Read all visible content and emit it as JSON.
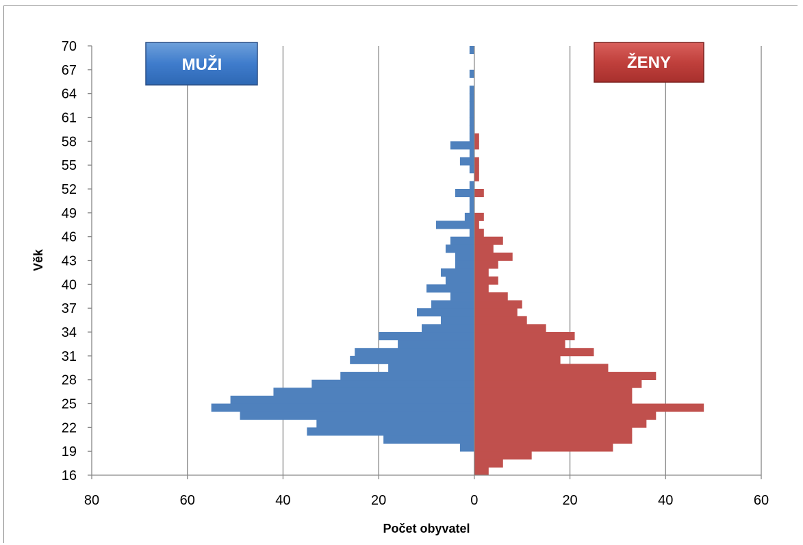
{
  "chart_data": {
    "type": "bar",
    "orientation": "horizontal",
    "subtype": "population-pyramid",
    "xlabel": "Počet obyvatel",
    "ylabel": "Věk",
    "x_tick_labels": [
      "80",
      "60",
      "40",
      "20",
      "0",
      "20",
      "40",
      "60"
    ],
    "y_tick_labels": [
      "16",
      "19",
      "22",
      "25",
      "28",
      "31",
      "34",
      "37",
      "40",
      "43",
      "46",
      "49",
      "52",
      "55",
      "58",
      "61",
      "64",
      "67",
      "70"
    ],
    "xlim": [
      -80,
      60
    ],
    "ylim": [
      16,
      70
    ],
    "grid": "vertical",
    "ages": [
      17,
      18,
      19,
      20,
      21,
      22,
      23,
      24,
      25,
      26,
      27,
      28,
      29,
      30,
      31,
      32,
      33,
      34,
      35,
      36,
      37,
      38,
      39,
      40,
      41,
      42,
      43,
      44,
      45,
      46,
      47,
      48,
      49,
      50,
      51,
      52,
      53,
      54,
      55,
      56,
      57,
      58,
      59,
      60,
      61,
      62,
      63,
      64,
      65,
      66,
      67,
      68,
      69,
      70
    ],
    "series": [
      {
        "name": "MUŽI",
        "color": "#4f81bd",
        "values": [
          0,
          0,
          0,
          3,
          19,
          35,
          33,
          49,
          55,
          51,
          42,
          34,
          28,
          18,
          26,
          25,
          16,
          20,
          11,
          7,
          12,
          9,
          5,
          10,
          6,
          7,
          4,
          4,
          6,
          5,
          1,
          8,
          2,
          1,
          1,
          4,
          1,
          0,
          1,
          3,
          1,
          5,
          1,
          1,
          1,
          1,
          1,
          1,
          1,
          0,
          1,
          0,
          0,
          1
        ]
      },
      {
        "name": "ŽENY",
        "color": "#c0504d",
        "values": [
          3,
          6,
          12,
          29,
          33,
          33,
          36,
          38,
          48,
          33,
          33,
          35,
          38,
          28,
          18,
          25,
          19,
          21,
          15,
          11,
          9,
          10,
          7,
          3,
          5,
          3,
          5,
          8,
          4,
          6,
          2,
          1,
          2,
          0,
          0,
          2,
          0,
          1,
          1,
          1,
          0,
          1,
          1,
          0,
          0,
          0,
          0,
          0,
          0,
          0,
          0,
          0,
          0,
          0
        ]
      }
    ],
    "labels": {
      "men": "MUŽI",
      "women": "ŽENY"
    }
  }
}
